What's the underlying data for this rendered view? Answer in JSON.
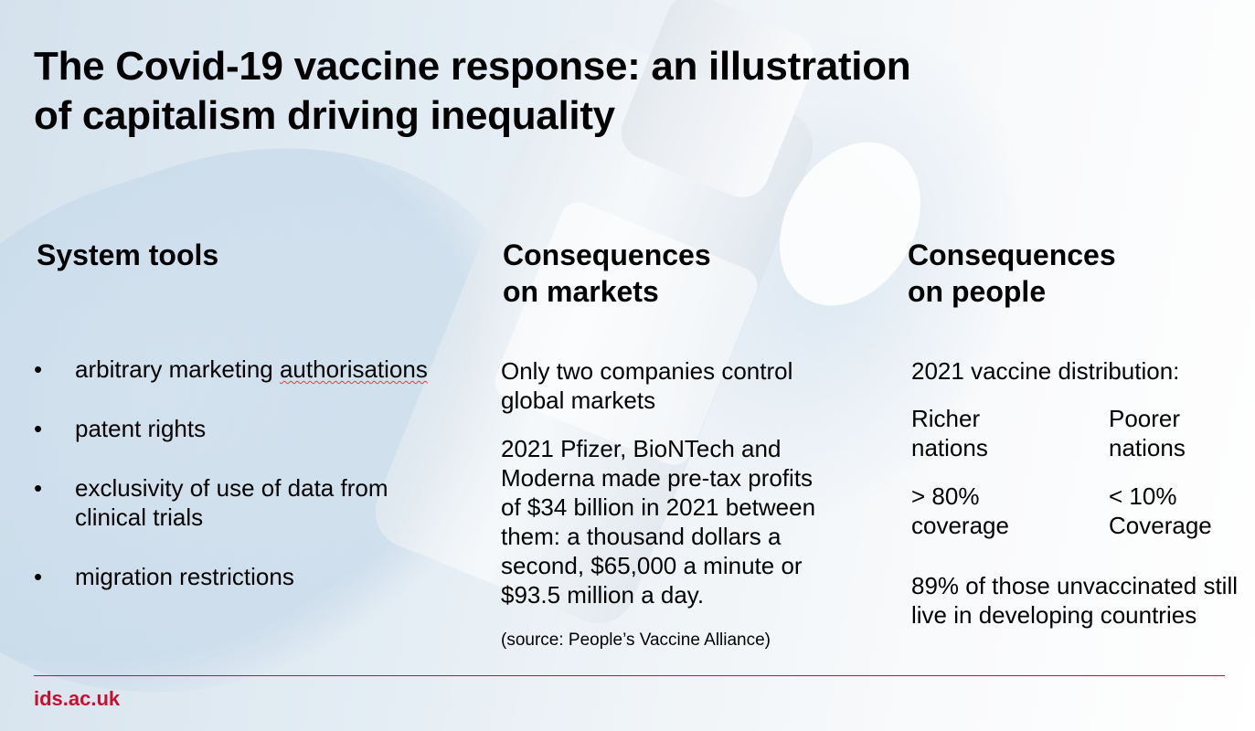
{
  "title": "The Covid-19 vaccine response: an illustration of capitalism driving inequality",
  "columns": {
    "system_tools": {
      "heading": "System tools",
      "items": [
        {
          "before": "arbitrary marketing ",
          "flagged": "authorisations"
        },
        {
          "text": "patent rights"
        },
        {
          "text": "exclusivity of use of data from clinical trials"
        },
        {
          "text": "migration restrictions"
        }
      ]
    },
    "markets": {
      "heading": "Consequences on markets",
      "para1": "Only two companies control global markets",
      "para2": "2021 Pfizer, BioNTech and Moderna made pre-tax profits of $34 billion in 2021 between them: a thousand dollars a second, $65,000 a minute or $93.5 million a day.",
      "source": "(source: People’s Vaccine Alliance)"
    },
    "people": {
      "heading": "Consequences on people",
      "intro": "2021 vaccine distribution:",
      "richer_label": "Richer nations",
      "poorer_label": "Poorer nations",
      "richer_value": "> 80% coverage",
      "poorer_value": "< 10% Coverage",
      "note": "89% of those unvaccinated still live in developing countries"
    }
  },
  "footer": "ids.ac.uk",
  "colors": {
    "accent": "#c8102e"
  }
}
